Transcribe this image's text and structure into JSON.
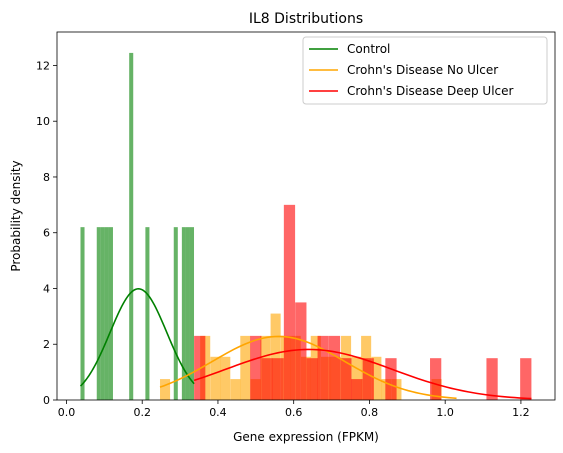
{
  "chart_data": {
    "type": "histogram",
    "title": "IL8 Distributions",
    "xlabel": "Gene expression (FPKM)",
    "ylabel": "Probability density",
    "xlim": [
      -0.025,
      1.29
    ],
    "ylim": [
      0,
      13.2
    ],
    "xticks": [
      0.0,
      0.2,
      0.4,
      0.6,
      0.8,
      1.0,
      1.2
    ],
    "xtick_labels": [
      "0.0",
      "0.2",
      "0.4",
      "0.6",
      "0.8",
      "1.0",
      "1.2"
    ],
    "yticks": [
      0,
      2,
      4,
      6,
      8,
      10,
      12
    ],
    "ytick_labels": [
      "0",
      "2",
      "4",
      "6",
      "8",
      "10",
      "12"
    ],
    "legend_position": "top-right",
    "series": [
      {
        "name": "Control",
        "color": "#008000",
        "bar_alpha": 0.6,
        "bin_width": 0.0107,
        "hist": [
          {
            "x": 0.037,
            "y": 6.2
          },
          {
            "x": 0.08,
            "y": 6.2
          },
          {
            "x": 0.0907,
            "y": 6.2
          },
          {
            "x": 0.1014,
            "y": 6.2
          },
          {
            "x": 0.1121,
            "y": 6.2
          },
          {
            "x": 0.1656,
            "y": 12.45
          },
          {
            "x": 0.2084,
            "y": 6.2
          },
          {
            "x": 0.2833,
            "y": 6.2
          },
          {
            "x": 0.3047,
            "y": 6.2
          },
          {
            "x": 0.3154,
            "y": 6.2
          },
          {
            "x": 0.3261,
            "y": 6.2
          }
        ],
        "kde": {
          "x_start": 0.037,
          "x_end": 0.337,
          "mean": 0.19,
          "sd": 0.075,
          "scale": 0.75
        }
      },
      {
        "name": "Crohn's Disease No Ulcer",
        "color": "#FFA500",
        "bar_alpha": 0.6,
        "bin_width": 0.0266,
        "hist": [
          {
            "x": 0.247,
            "y": 0.75
          },
          {
            "x": 0.353,
            "y": 2.3
          },
          {
            "x": 0.38,
            "y": 1.55
          },
          {
            "x": 0.406,
            "y": 1.55
          },
          {
            "x": 0.433,
            "y": 0.75
          },
          {
            "x": 0.459,
            "y": 2.3
          },
          {
            "x": 0.486,
            "y": 0.75
          },
          {
            "x": 0.512,
            "y": 2.3
          },
          {
            "x": 0.539,
            "y": 3.1
          },
          {
            "x": 0.566,
            "y": 2.3
          },
          {
            "x": 0.592,
            "y": 2.3
          },
          {
            "x": 0.619,
            "y": 1.55
          },
          {
            "x": 0.645,
            "y": 2.3
          },
          {
            "x": 0.672,
            "y": 1.55
          },
          {
            "x": 0.698,
            "y": 1.55
          },
          {
            "x": 0.725,
            "y": 2.3
          },
          {
            "x": 0.752,
            "y": 1.55
          },
          {
            "x": 0.778,
            "y": 2.3
          },
          {
            "x": 0.805,
            "y": 1.55
          },
          {
            "x": 0.831,
            "y": 0.75
          },
          {
            "x": 0.858,
            "y": 0.75
          },
          {
            "x": 0.964,
            "y": 0.75
          }
        ],
        "kde": {
          "x_start": 0.247,
          "x_end": 1.03,
          "mean": 0.56,
          "sd": 0.175,
          "scale": 1.0
        }
      },
      {
        "name": "Crohn's Disease Deep Ulcer",
        "color": "#FF0000",
        "bar_alpha": 0.6,
        "bin_width": 0.0297,
        "hist": [
          {
            "x": 0.337,
            "y": 2.3
          },
          {
            "x": 0.485,
            "y": 2.3
          },
          {
            "x": 0.515,
            "y": 1.5
          },
          {
            "x": 0.544,
            "y": 1.5
          },
          {
            "x": 0.574,
            "y": 7.0
          },
          {
            "x": 0.604,
            "y": 3.5
          },
          {
            "x": 0.634,
            "y": 1.5
          },
          {
            "x": 0.663,
            "y": 2.3
          },
          {
            "x": 0.693,
            "y": 2.3
          },
          {
            "x": 0.723,
            "y": 1.5
          },
          {
            "x": 0.752,
            "y": 0.75
          },
          {
            "x": 0.782,
            "y": 1.5
          },
          {
            "x": 0.842,
            "y": 1.5
          },
          {
            "x": 0.96,
            "y": 1.5
          },
          {
            "x": 1.109,
            "y": 1.5
          },
          {
            "x": 1.198,
            "y": 1.5
          }
        ],
        "kde": {
          "x_start": 0.337,
          "x_end": 1.228,
          "mean": 0.64,
          "sd": 0.22,
          "scale": 1.0
        }
      }
    ]
  }
}
